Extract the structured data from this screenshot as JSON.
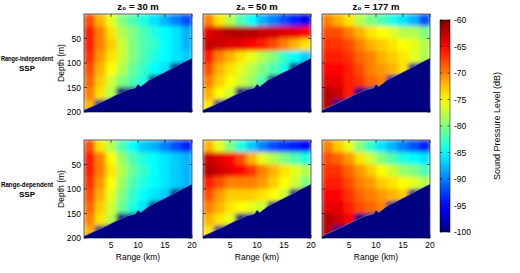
{
  "chart_data": [
    {
      "type": "heatmap",
      "title": "z₀ = 30 m",
      "ylabel": "Depth (m)",
      "annotations": [
        "Range-independent",
        "SSP"
      ],
      "xlim": [
        0,
        20
      ],
      "ylim": [
        200,
        0
      ],
      "xticks": [
        5,
        10,
        15,
        20
      ],
      "yticks": [
        50,
        100,
        150,
        200
      ],
      "tick_labels": "y",
      "x_bins": [
        0,
        2,
        4,
        6,
        8,
        10,
        12,
        14,
        16,
        18,
        20
      ],
      "y_bins": [
        0,
        25,
        50,
        75,
        100,
        125,
        150,
        175,
        200
      ],
      "cells": [
        [
          -68,
          -72,
          -76,
          -80,
          -82,
          -84,
          -86,
          -88,
          -90,
          -92
        ],
        [
          -66,
          -70,
          -74,
          -78,
          -80,
          -82,
          -84,
          -85,
          -86,
          -88
        ],
        [
          -66,
          -70,
          -73,
          -77,
          -80,
          -82,
          -83,
          -85,
          -86,
          -88
        ],
        [
          -67,
          -71,
          -74,
          -77,
          -80,
          -82,
          -84,
          -85,
          -86,
          -87
        ],
        [
          -68,
          -72,
          -75,
          -78,
          -81,
          -83,
          -85,
          -86,
          -100,
          -100
        ],
        [
          -69,
          -73,
          -77,
          -80,
          -82,
          -84,
          -100,
          -100,
          -100,
          -100
        ],
        [
          -70,
          -74,
          -78,
          -100,
          -100,
          -100,
          -100,
          -100,
          -100,
          -100
        ],
        [
          -72,
          -100,
          -100,
          -100,
          -100,
          -100,
          -100,
          -100,
          -100,
          -100
        ]
      ]
    },
    {
      "type": "heatmap",
      "title": "z₀ = 50 m",
      "xlim": [
        0,
        20
      ],
      "ylim": [
        200,
        0
      ],
      "xticks": [
        5,
        10,
        15,
        20
      ],
      "yticks": [
        50,
        100,
        150,
        200
      ],
      "tick_labels": false,
      "x_bins": [
        0,
        2,
        4,
        6,
        8,
        10,
        12,
        14,
        16,
        18,
        20
      ],
      "y_bins": [
        0,
        25,
        50,
        75,
        100,
        125,
        150,
        175,
        200
      ],
      "cells": [
        [
          -70,
          -74,
          -78,
          -82,
          -85,
          -88,
          -90,
          -92,
          -94,
          -96
        ],
        [
          -64,
          -63,
          -62,
          -62,
          -62,
          -63,
          -63,
          -64,
          -64,
          -65
        ],
        [
          -63,
          -63,
          -64,
          -64,
          -65,
          -66,
          -68,
          -70,
          -72,
          -74
        ],
        [
          -66,
          -70,
          -72,
          -74,
          -76,
          -78,
          -80,
          -83,
          -85,
          -87
        ],
        [
          -68,
          -72,
          -74,
          -76,
          -78,
          -80,
          -82,
          -84,
          -100,
          -100
        ],
        [
          -70,
          -73,
          -75,
          -77,
          -79,
          -82,
          -100,
          -100,
          -100,
          -100
        ],
        [
          -72,
          -75,
          -77,
          -100,
          -100,
          -100,
          -100,
          -100,
          -100,
          -100
        ],
        [
          -74,
          -100,
          -100,
          -100,
          -100,
          -100,
          -100,
          -100,
          -100,
          -100
        ]
      ]
    },
    {
      "type": "heatmap",
      "title": "z₀ = 177 m",
      "xlim": [
        0,
        20
      ],
      "ylim": [
        200,
        0
      ],
      "xticks": [
        5,
        10,
        15,
        20
      ],
      "yticks": [
        50,
        100,
        150,
        200
      ],
      "tick_labels": false,
      "x_bins": [
        0,
        2,
        4,
        6,
        8,
        10,
        12,
        14,
        16,
        18,
        20
      ],
      "y_bins": [
        0,
        25,
        50,
        75,
        100,
        125,
        150,
        175,
        200
      ],
      "cells": [
        [
          -70,
          -72,
          -74,
          -78,
          -80,
          -82,
          -84,
          -86,
          -88,
          -92
        ],
        [
          -68,
          -68,
          -70,
          -72,
          -74,
          -75,
          -76,
          -78,
          -78,
          -80
        ],
        [
          -67,
          -67,
          -68,
          -70,
          -72,
          -73,
          -74,
          -75,
          -76,
          -78
        ],
        [
          -66,
          -66,
          -67,
          -69,
          -70,
          -72,
          -73,
          -74,
          -76,
          -78
        ],
        [
          -65,
          -65,
          -66,
          -68,
          -70,
          -71,
          -72,
          -74,
          -100,
          -100
        ],
        [
          -64,
          -64,
          -66,
          -67,
          -69,
          -70,
          -100,
          -100,
          -100,
          -100
        ],
        [
          -62,
          -63,
          -66,
          -100,
          -100,
          -100,
          -100,
          -100,
          -100,
          -100
        ],
        [
          -62,
          -100,
          -100,
          -100,
          -100,
          -100,
          -100,
          -100,
          -100,
          -100
        ]
      ]
    },
    {
      "type": "heatmap",
      "xlabel": "Range (km)",
      "ylabel": "Depth (m)",
      "annotations": [
        "Range-dependent",
        "SSP"
      ],
      "xlim": [
        0,
        20
      ],
      "ylim": [
        200,
        0
      ],
      "xticks": [
        5,
        10,
        15,
        20
      ],
      "yticks": [
        50,
        100,
        150,
        200
      ],
      "tick_labels": true,
      "x_bins": [
        0,
        2,
        4,
        6,
        8,
        10,
        12,
        14,
        16,
        18,
        20
      ],
      "y_bins": [
        0,
        25,
        50,
        75,
        100,
        125,
        150,
        175,
        200
      ],
      "cells": [
        [
          -68,
          -74,
          -78,
          -82,
          -85,
          -87,
          -88,
          -90,
          -92,
          -94
        ],
        [
          -66,
          -70,
          -75,
          -79,
          -82,
          -84,
          -85,
          -86,
          -87,
          -88
        ],
        [
          -66,
          -70,
          -74,
          -78,
          -81,
          -83,
          -85,
          -86,
          -87,
          -88
        ],
        [
          -67,
          -71,
          -75,
          -79,
          -82,
          -84,
          -85,
          -86,
          -87,
          -88
        ],
        [
          -68,
          -72,
          -76,
          -80,
          -83,
          -85,
          -86,
          -87,
          -100,
          -100
        ],
        [
          -69,
          -73,
          -77,
          -81,
          -84,
          -86,
          -100,
          -100,
          -100,
          -100
        ],
        [
          -70,
          -74,
          -78,
          -100,
          -100,
          -100,
          -100,
          -100,
          -100,
          -100
        ],
        [
          -72,
          -100,
          -100,
          -100,
          -100,
          -100,
          -100,
          -100,
          -100,
          -100
        ]
      ]
    },
    {
      "type": "heatmap",
      "xlabel": "Range (km)",
      "xlim": [
        0,
        20
      ],
      "ylim": [
        200,
        0
      ],
      "xticks": [
        5,
        10,
        15,
        20
      ],
      "yticks": [
        50,
        100,
        150,
        200
      ],
      "tick_labels": "x",
      "x_bins": [
        0,
        2,
        4,
        6,
        8,
        10,
        12,
        14,
        16,
        18,
        20
      ],
      "y_bins": [
        0,
        25,
        50,
        75,
        100,
        125,
        150,
        175,
        200
      ],
      "cells": [
        [
          -72,
          -76,
          -80,
          -84,
          -87,
          -90,
          -92,
          -93,
          -94,
          -95
        ],
        [
          -63,
          -64,
          -65,
          -68,
          -72,
          -76,
          -78,
          -80,
          -82,
          -84
        ],
        [
          -62,
          -63,
          -64,
          -65,
          -67,
          -70,
          -72,
          -74,
          -76,
          -78
        ],
        [
          -66,
          -68,
          -70,
          -70,
          -70,
          -71,
          -73,
          -75,
          -77,
          -80
        ],
        [
          -68,
          -71,
          -73,
          -73,
          -73,
          -74,
          -75,
          -77,
          -100,
          -100
        ],
        [
          -70,
          -72,
          -74,
          -75,
          -76,
          -77,
          -100,
          -100,
          -100,
          -100
        ],
        [
          -72,
          -74,
          -76,
          -100,
          -100,
          -100,
          -100,
          -100,
          -100,
          -100
        ],
        [
          -74,
          -100,
          -100,
          -100,
          -100,
          -100,
          -100,
          -100,
          -100,
          -100
        ]
      ]
    },
    {
      "type": "heatmap",
      "xlabel": "Range (km)",
      "xlim": [
        0,
        20
      ],
      "ylim": [
        200,
        0
      ],
      "xticks": [
        5,
        10,
        15,
        20
      ],
      "yticks": [
        50,
        100,
        150,
        200
      ],
      "tick_labels": "x",
      "x_bins": [
        0,
        2,
        4,
        6,
        8,
        10,
        12,
        14,
        16,
        18,
        20
      ],
      "y_bins": [
        0,
        25,
        50,
        75,
        100,
        125,
        150,
        175,
        200
      ],
      "cells": [
        [
          -70,
          -73,
          -76,
          -80,
          -83,
          -86,
          -88,
          -90,
          -92,
          -94
        ],
        [
          -68,
          -69,
          -71,
          -74,
          -77,
          -80,
          -82,
          -84,
          -85,
          -86
        ],
        [
          -67,
          -67,
          -69,
          -71,
          -73,
          -75,
          -77,
          -79,
          -80,
          -82
        ],
        [
          -66,
          -66,
          -68,
          -70,
          -71,
          -73,
          -74,
          -75,
          -76,
          -78
        ],
        [
          -65,
          -65,
          -67,
          -69,
          -70,
          -71,
          -72,
          -73,
          -100,
          -100
        ],
        [
          -64,
          -64,
          -66,
          -68,
          -69,
          -70,
          -100,
          -100,
          -100,
          -100
        ],
        [
          -62,
          -63,
          -65,
          -100,
          -100,
          -100,
          -100,
          -100,
          -100,
          -100
        ],
        [
          -62,
          -100,
          -100,
          -100,
          -100,
          -100,
          -100,
          -100,
          -100,
          -100
        ]
      ]
    }
  ],
  "seabed": {
    "range": [
      0,
      2,
      4,
      6,
      8,
      9.5,
      10,
      10.5,
      12,
      14,
      16,
      18,
      20
    ],
    "depth": [
      196,
      186,
      176,
      165,
      155,
      151,
      143,
      148,
      135,
      124,
      113,
      101,
      90
    ]
  },
  "colorbar": {
    "label": "Sound Pressure Level (dB)",
    "range": [
      -100,
      -60
    ],
    "ticks": [
      -100,
      -95,
      -90,
      -85,
      -80,
      -75,
      -70,
      -65,
      -60
    ]
  }
}
